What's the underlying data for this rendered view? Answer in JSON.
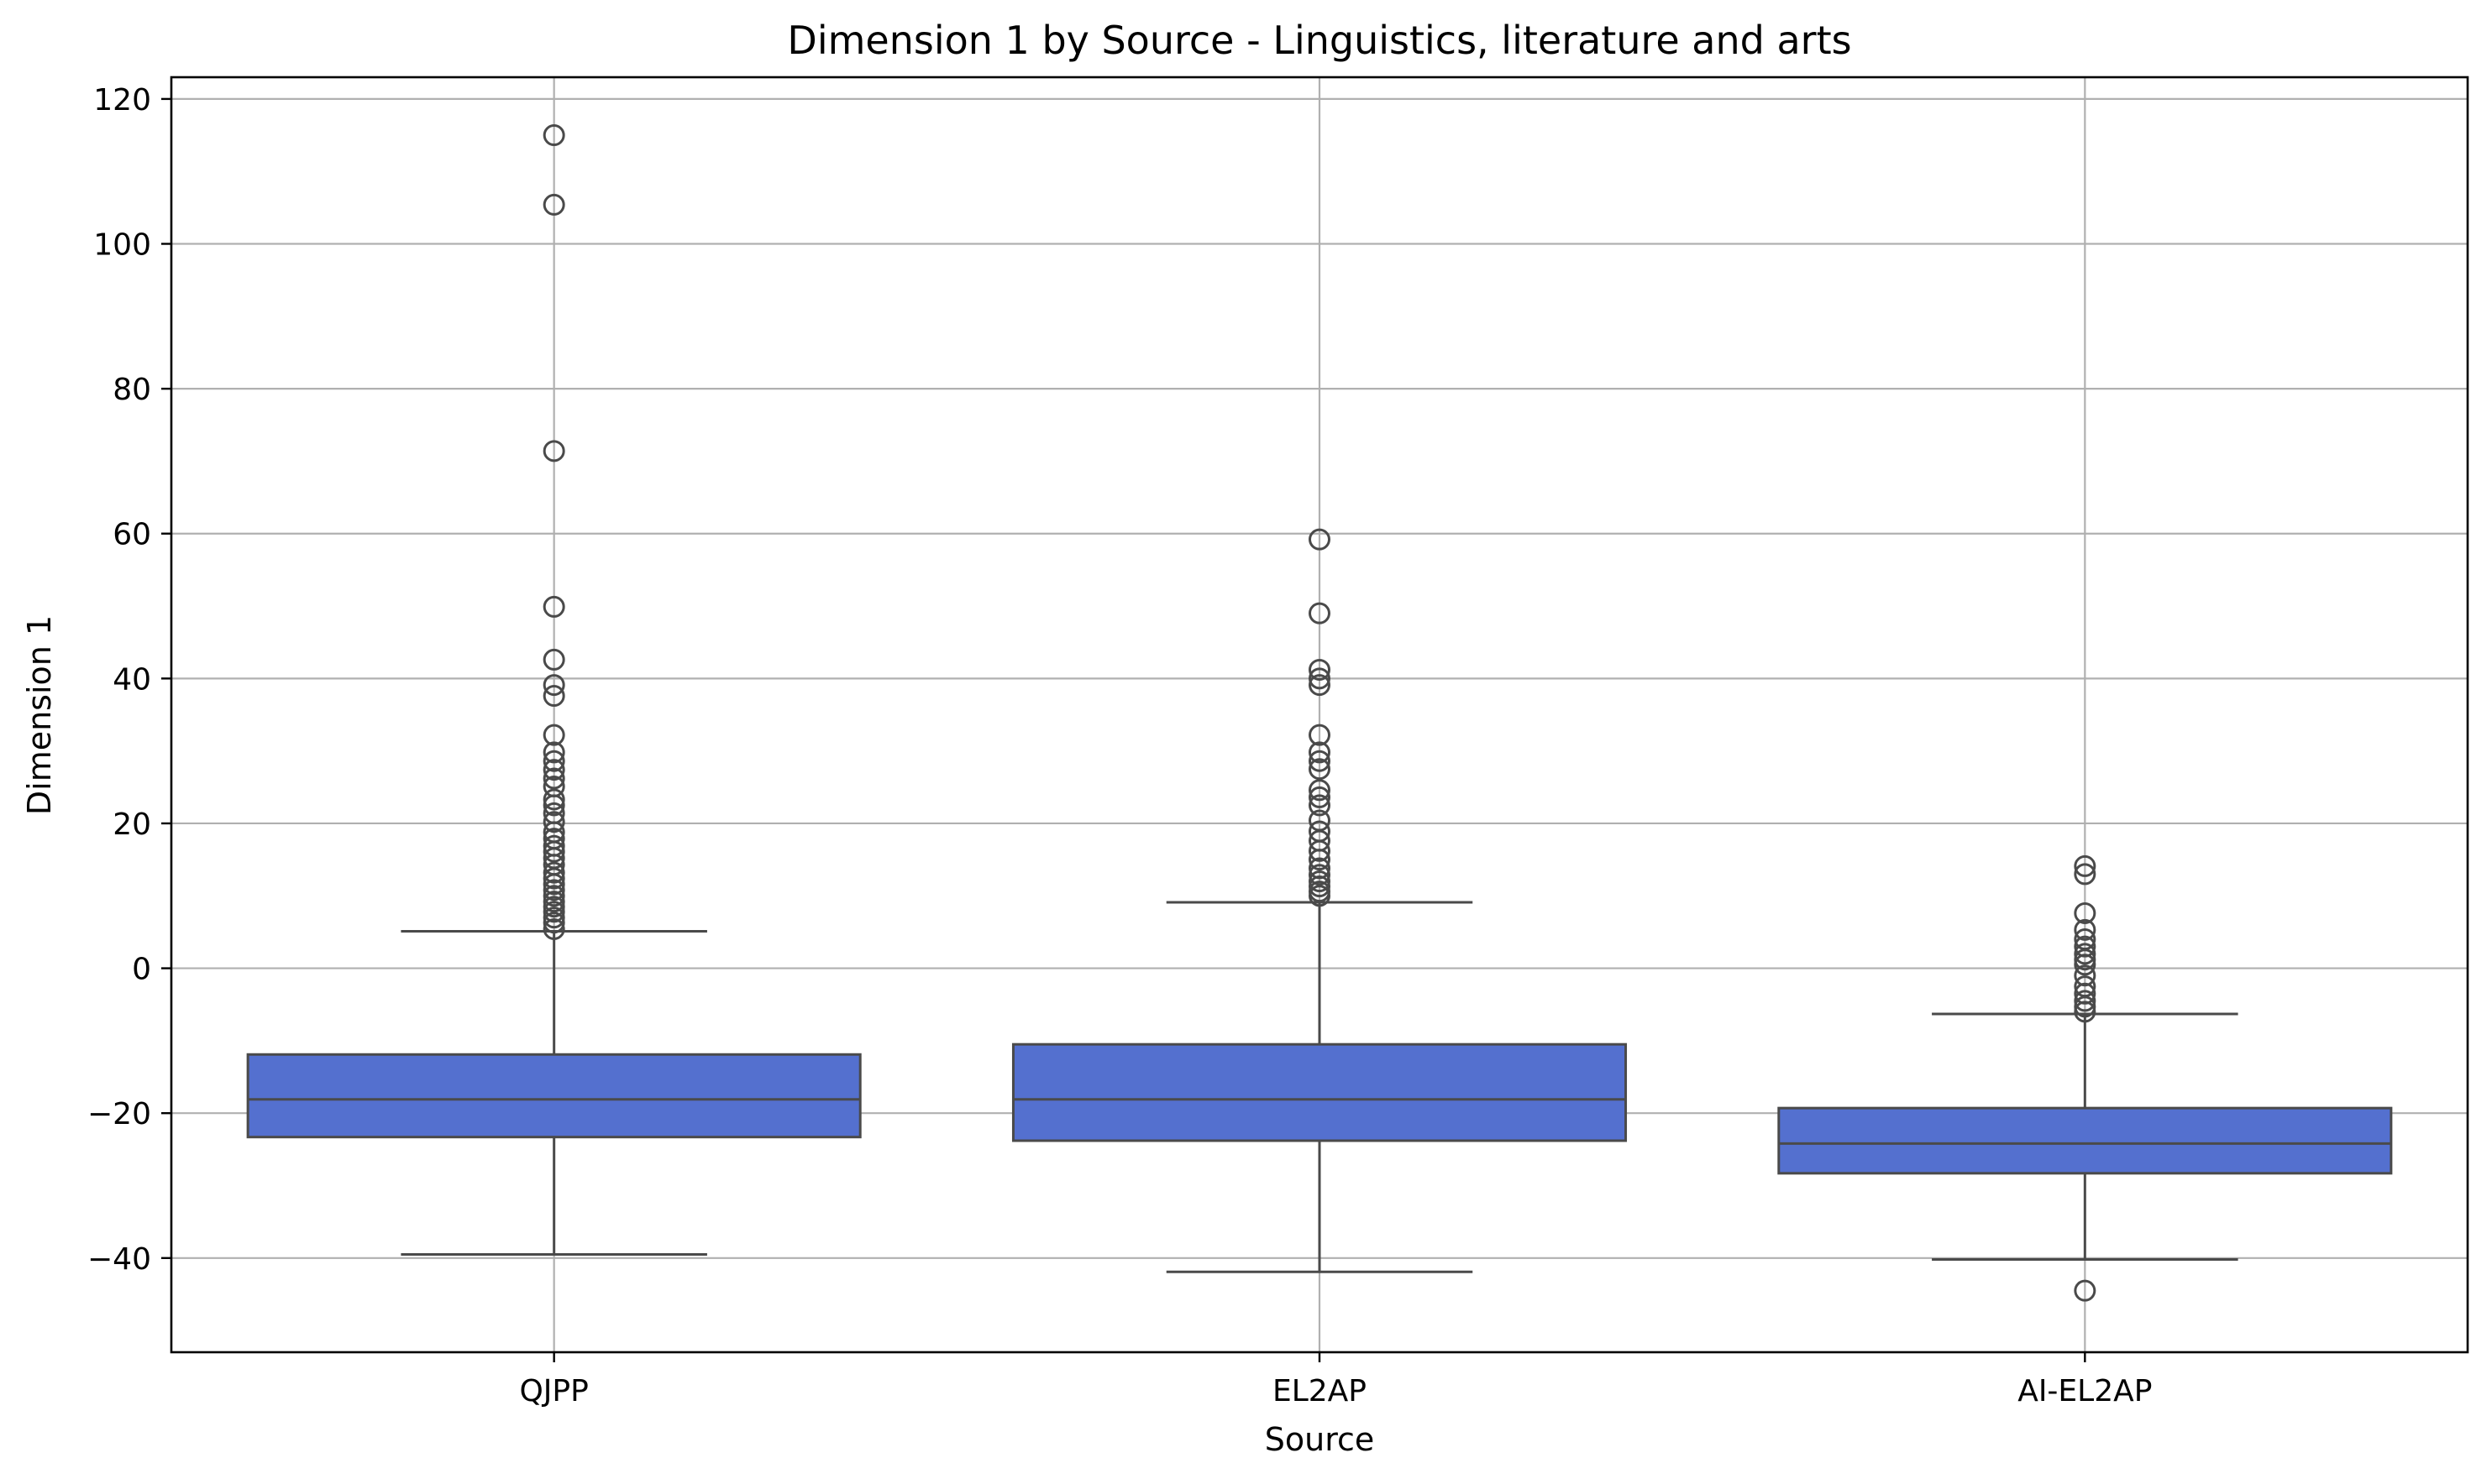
{
  "chart_data": {
    "type": "box",
    "title": "Dimension 1 by Source - Linguistics, literature and arts",
    "xlabel": "Source",
    "ylabel": "Dimension 1",
    "ylim": [
      -53,
      123
    ],
    "yticks": [
      -40,
      -20,
      0,
      20,
      40,
      60,
      80,
      100,
      120
    ],
    "ytick_labels": [
      "−40",
      "−20",
      "0",
      "20",
      "40",
      "60",
      "80",
      "100",
      "120"
    ],
    "grid": true,
    "box_color": "#5470cf",
    "line_color": "#4a4a4a",
    "categories": [
      "QJPP",
      "EL2AP",
      "AI-EL2AP"
    ],
    "boxes": [
      {
        "name": "QJPP",
        "whislo": -39.5,
        "q1": -23.3,
        "median": -18.1,
        "q3": -11.9,
        "whishi": 5.1,
        "fliers": [
          115,
          105.4,
          71.4,
          49.9,
          42.6,
          39.1,
          37.6,
          32.2,
          29.8,
          28.6,
          27.4,
          26.2,
          25.1,
          23.3,
          22.5,
          21.4,
          20.2,
          18.8,
          17.9,
          16.9,
          16.1,
          15.2,
          14.3,
          13.2,
          12.4,
          11.6,
          10.8,
          10.0,
          9.2,
          8.5,
          7.8,
          7.0,
          6.3,
          5.4
        ]
      },
      {
        "name": "EL2AP",
        "whislo": -41.9,
        "q1": -23.8,
        "median": -18.1,
        "q3": -10.5,
        "whishi": 9.1,
        "fliers": [
          59.2,
          49.0,
          41.2,
          40.0,
          39.1,
          32.2,
          29.8,
          28.6,
          27.5,
          24.6,
          23.6,
          22.5,
          20.4,
          18.9,
          17.6,
          16.2,
          15.0,
          13.8,
          12.9,
          12.0,
          11.3,
          10.6,
          10.0
        ]
      },
      {
        "name": "AI-EL2AP",
        "whislo": -40.2,
        "q1": -28.3,
        "median": -24.2,
        "q3": -19.3,
        "whishi": -6.3,
        "fliers": [
          14.1,
          13.0,
          7.6,
          5.3,
          4.0,
          3.0,
          2.0,
          1.2,
          0.5,
          -1.0,
          -2.5,
          -3.5,
          -4.5,
          -5.3,
          -6.0,
          -44.5
        ]
      }
    ]
  }
}
